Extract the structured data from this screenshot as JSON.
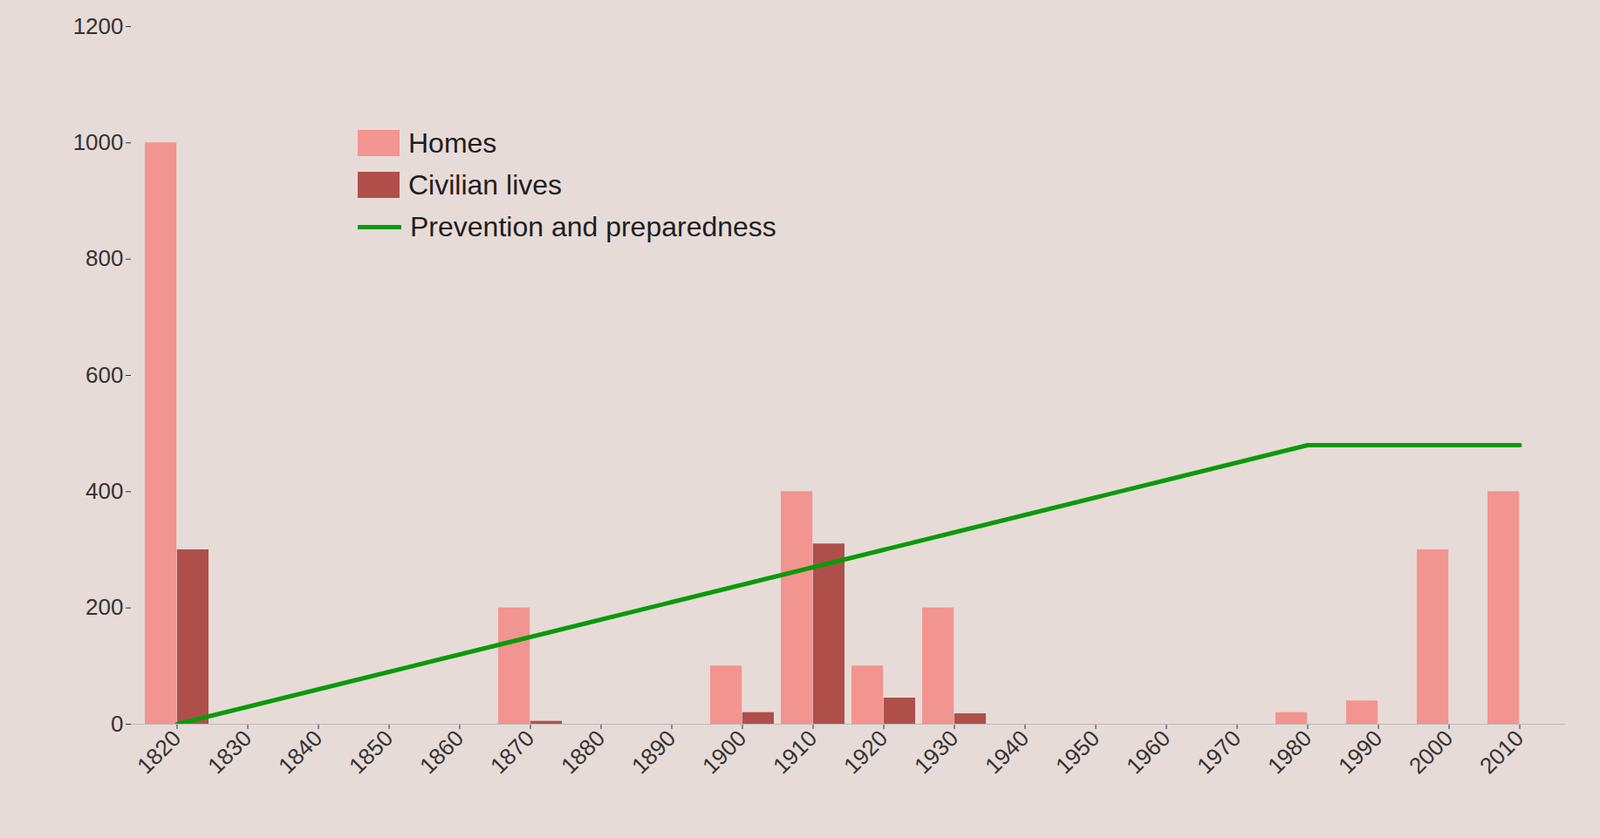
{
  "chart_data": {
    "type": "bar",
    "categories": [
      1820,
      1830,
      1840,
      1850,
      1860,
      1870,
      1880,
      1890,
      1900,
      1910,
      1920,
      1930,
      1940,
      1950,
      1960,
      1970,
      1980,
      1990,
      2000,
      2010
    ],
    "series": [
      {
        "name": "Homes",
        "type": "bar",
        "color": "#f29490",
        "values": [
          1000,
          null,
          null,
          null,
          null,
          200,
          null,
          null,
          100,
          400,
          100,
          200,
          null,
          null,
          null,
          null,
          20,
          40,
          300,
          400
        ]
      },
      {
        "name": "Civilian lives",
        "type": "bar",
        "color": "#b04f4a",
        "values": [
          300,
          null,
          null,
          null,
          null,
          5,
          null,
          null,
          20,
          310,
          45,
          18,
          null,
          null,
          null,
          null,
          null,
          null,
          null,
          null
        ]
      },
      {
        "name": "Prevention and preparedness",
        "type": "line",
        "color": "#0a9a0a",
        "values": [
          0,
          30,
          60,
          90,
          120,
          150,
          180,
          210,
          240,
          270,
          300,
          330,
          360,
          390,
          420,
          450,
          480,
          480,
          480,
          480
        ]
      }
    ],
    "ylim": [
      0,
      1200
    ],
    "yticks": [
      0,
      200,
      400,
      600,
      800,
      1000,
      1200
    ],
    "grid": false,
    "legend": "upper left"
  }
}
